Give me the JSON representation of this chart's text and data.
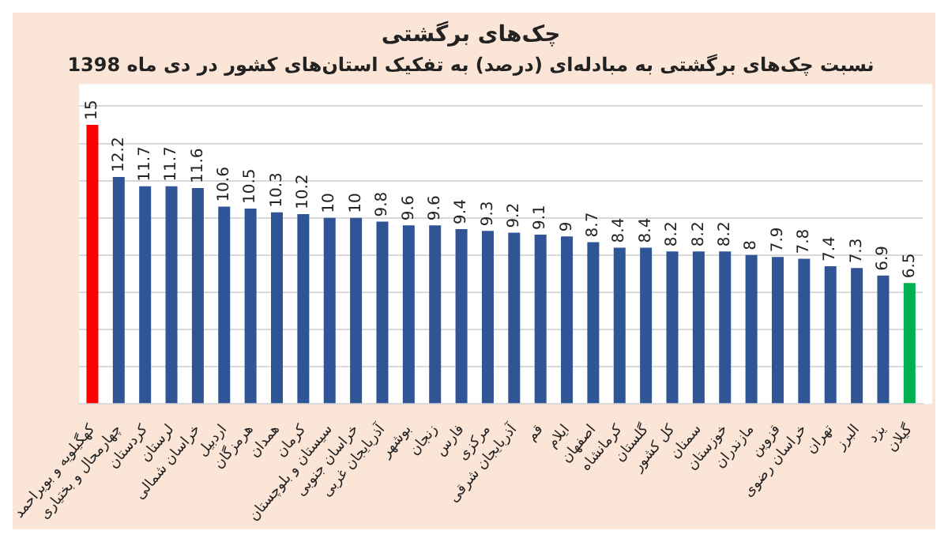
{
  "chart_data": {
    "type": "bar",
    "title": "چک‌های برگشتی",
    "subtitle": "نسبت چک‌های برگشتی به مبادله‌ای (درصد) به تفکیک استان‌های کشور در دی ماه 1398",
    "categories": [
      "کهگیلویه و بویراحمد",
      "چهارمحال و بختیاری",
      "کردستان",
      "لرستان",
      "خراسان شمالی",
      "اردبیل",
      "هرمزگان",
      "همدان",
      "کرمان",
      "سیستان و بلوچستان",
      "خراسان جنوبی",
      "آذربایجان غربی",
      "بوشهر",
      "زنجان",
      "فارس",
      "مرکزی",
      "آذربایجان شرقی",
      "قم",
      "ایلام",
      "اصفهان",
      "کرمانشاه",
      "گلستان",
      "کل کشور",
      "سمنان",
      "خوزستان",
      "مازندران",
      "قزوین",
      "خراسان رضوی",
      "تهران",
      "البرز",
      "یزد",
      "گیلان"
    ],
    "values": [
      15,
      12.2,
      11.7,
      11.7,
      11.6,
      10.6,
      10.5,
      10.3,
      10.2,
      10,
      10,
      9.8,
      9.6,
      9.6,
      9.4,
      9.3,
      9.2,
      9.1,
      9,
      8.7,
      8.4,
      8.4,
      8.2,
      8.2,
      8.2,
      8,
      7.9,
      7.8,
      7.4,
      7.3,
      6.9,
      6.5
    ],
    "colors": [
      "#ff0000",
      "#2f5597",
      "#2f5597",
      "#2f5597",
      "#2f5597",
      "#2f5597",
      "#2f5597",
      "#2f5597",
      "#2f5597",
      "#2f5597",
      "#2f5597",
      "#2f5597",
      "#2f5597",
      "#2f5597",
      "#2f5597",
      "#2f5597",
      "#2f5597",
      "#2f5597",
      "#2f5597",
      "#2f5597",
      "#2f5597",
      "#2f5597",
      "#2f5597",
      "#2f5597",
      "#2f5597",
      "#2f5597",
      "#2f5597",
      "#2f5597",
      "#2f5597",
      "#2f5597",
      "#2f5597",
      "#00b050"
    ],
    "ylim": [
      0,
      16
    ],
    "yticks": [
      {
        "value": 0,
        "label": null
      },
      {
        "value": 2,
        "label": null
      },
      {
        "value": 4,
        "label": null
      },
      {
        "value": 6,
        "label": null
      },
      {
        "value": 8,
        "label": null
      },
      {
        "value": 10,
        "label": null
      },
      {
        "value": 12,
        "label": null
      },
      {
        "value": 14,
        "label": null
      },
      {
        "value": 16,
        "label": null
      }
    ],
    "grid": "y",
    "tick_labels": "x",
    "data_labels": true
  }
}
